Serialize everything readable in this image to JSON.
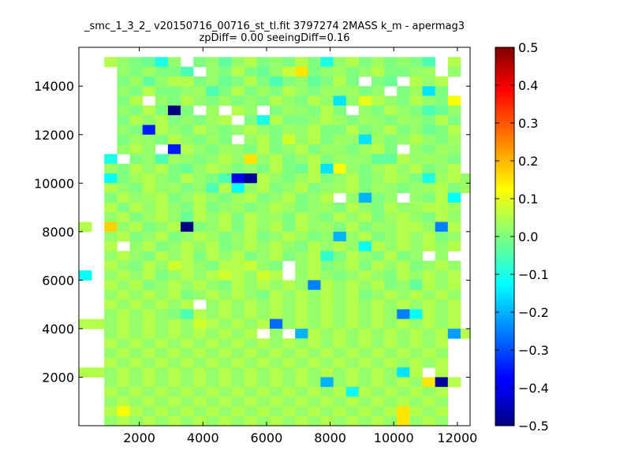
{
  "chart_data": {
    "type": "heatmap",
    "title_line1": "_smc_1_3_2_ v20150716_00716_st_tl.fit 3797274 2MASS k_m - apermag3",
    "title_line2": "zpDiff= 0.00 seeingDiff=0.16",
    "xlabel": "",
    "ylabel": "",
    "xlim": [
      100,
      12400
    ],
    "ylim": [
      0,
      15600
    ],
    "xticks": [
      2000,
      4000,
      6000,
      8000,
      10000,
      12000
    ],
    "yticks": [
      2000,
      4000,
      6000,
      8000,
      10000,
      12000,
      14000
    ],
    "colormap": "jet",
    "clim": [
      -0.5,
      0.5
    ],
    "colorbar_ticks": [
      0.5,
      0.4,
      0.3,
      0.2,
      0.1,
      0.0,
      -0.1,
      -0.2,
      -0.3,
      -0.4,
      -0.5
    ],
    "colorbar_tick_labels": [
      "0.5",
      "0.4",
      "0.3",
      "0.2",
      "0.1",
      "0.0",
      "−0.1",
      "−0.2",
      "−0.3",
      "−0.4",
      "−0.5"
    ],
    "grid": false,
    "bin_size": 400,
    "origin": [
      100,
      0
    ],
    "n_cols": 31,
    "n_rows": 39,
    "missing_value": -9,
    "rows_top_to_bottom": [
      [
        -9,
        -9,
        -9,
        -9,
        -9,
        -9,
        -9,
        -9,
        -9,
        -9,
        -9,
        -9,
        -9,
        -9,
        -9,
        -9,
        -9,
        -9,
        -9,
        -9,
        -9,
        -9,
        -9,
        -9,
        -9,
        -9,
        -9,
        -9,
        -9,
        -9,
        -9
      ],
      [
        -9,
        -9,
        0.05,
        0.02,
        0,
        -0.02,
        -0.1,
        0.02,
        -9,
        0,
        0.02,
        -0.03,
        0.02,
        0.05,
        0,
        0.02,
        0,
        0.05,
        0,
        -0.1,
        0.02,
        0.05,
        0,
        0.03,
        0,
        0.02,
        0,
        -0.05,
        -9,
        0.05,
        -9
      ],
      [
        -9,
        -9,
        -9,
        0.02,
        0,
        0.03,
        0,
        0,
        -0.05,
        -9,
        0.02,
        0,
        0.05,
        0,
        -0.02,
        0.02,
        0.07,
        0.15,
        0,
        0.02,
        0.03,
        0,
        0.02,
        0.05,
        0,
        0,
        0.02,
        0.03,
        -9,
        0.02,
        -9
      ],
      [
        -9,
        -9,
        -9,
        0,
        0.03,
        -0.03,
        0.02,
        0.05,
        0.05,
        0,
        0.02,
        -0.02,
        0,
        0.05,
        0,
        -0.05,
        0,
        0.02,
        -0.03,
        0,
        0.05,
        0,
        -9,
        0,
        -0.02,
        -9,
        0.05,
        0.02,
        0.05,
        -9,
        -9
      ],
      [
        -9,
        -9,
        -9,
        0.02,
        0,
        0.05,
        0,
        0,
        0.02,
        0.03,
        -0.05,
        0,
        0.05,
        0,
        0.03,
        0,
        0.05,
        0.02,
        0,
        0.03,
        0.02,
        0.03,
        0,
        0.02,
        -9,
        0,
        0.03,
        -0.15,
        0,
        -9,
        -9
      ],
      [
        -9,
        -9,
        -9,
        0,
        0.05,
        -9,
        0.02,
        0,
        0.05,
        0.02,
        0,
        0.03,
        0,
        0.02,
        0,
        0.05,
        0.02,
        0,
        0.05,
        0.02,
        -0.15,
        0.02,
        0.1,
        0.05,
        0.02,
        0,
        0.05,
        0.02,
        0,
        0.12,
        -9
      ],
      [
        -9,
        -9,
        -9,
        0.02,
        0,
        0.05,
        0,
        -0.5,
        0,
        -9,
        0.03,
        -9,
        0.05,
        0.02,
        -9,
        0,
        0.03,
        0.02,
        0,
        0.05,
        0,
        -9,
        0.02,
        0,
        0.05,
        0.02,
        0,
        -0.05,
        -0.02,
        0.02,
        -9
      ],
      [
        -9,
        -9,
        -9,
        0,
        0.05,
        0.02,
        0.05,
        0,
        0.02,
        0,
        0.03,
        0.05,
        -9,
        0,
        -0.1,
        0.05,
        0,
        0,
        0.02,
        0.05,
        0.03,
        0,
        0.03,
        0.02,
        0,
        0.03,
        0.02,
        0,
        0.05,
        0,
        -9
      ],
      [
        -9,
        -9,
        -9,
        0.02,
        0,
        -0.35,
        0.05,
        0.02,
        0,
        0.05,
        0.02,
        0,
        0.02,
        0.05,
        0.02,
        0,
        0.03,
        0.02,
        0.05,
        0,
        0,
        0.05,
        0,
        0.02,
        0.05,
        0,
        0.02,
        -0.02,
        0,
        0.05,
        -9
      ],
      [
        -9,
        -9,
        -9,
        0,
        0.03,
        0.02,
        0,
        0.05,
        0.02,
        0,
        0.03,
        0,
        -9,
        0.02,
        0.05,
        0,
        0.08,
        0.02,
        0.05,
        0,
        0.03,
        0.02,
        -0.15,
        0.03,
        0,
        0.02,
        0.05,
        0.02,
        0,
        0.03,
        -9
      ],
      [
        -9,
        -9,
        -9,
        0.02,
        0.05,
        0.02,
        -9,
        -0.35,
        0.05,
        0.02,
        0,
        0.03,
        0.02,
        0,
        0.05,
        0,
        0.02,
        0.05,
        0,
        0.03,
        0.02,
        0,
        0.03,
        0.05,
        0,
        -9,
        0.02,
        0,
        0.03,
        0.02,
        -9
      ],
      [
        -9,
        -9,
        -0.1,
        -9,
        0,
        0.02,
        -0.05,
        0.03,
        0.02,
        0,
        0.02,
        0.05,
        0.02,
        0.15,
        0.02,
        0.05,
        0,
        0.02,
        0.05,
        0,
        0.03,
        0.02,
        0.02,
        -0.03,
        -0.03,
        0.05,
        0.02,
        0.03,
        0.02,
        0,
        -9
      ],
      [
        -9,
        -9,
        0.03,
        0,
        0.05,
        0.02,
        0.05,
        0,
        -0.02,
        0.02,
        0.05,
        0.03,
        0,
        0.02,
        0,
        0.05,
        0,
        -0.02,
        0.05,
        -0.15,
        0.12,
        0.02,
        0,
        0.03,
        0.05,
        0.02,
        0.05,
        0,
        0.02,
        0.05,
        -9
      ],
      [
        -9,
        -9,
        -0.12,
        0,
        0.03,
        0.05,
        0.02,
        0,
        0.05,
        0.02,
        0,
        -0.05,
        -0.4,
        -0.47,
        0.05,
        0.02,
        0,
        0.03,
        0.05,
        0,
        0.02,
        0.05,
        0,
        0.02,
        0.05,
        0.03,
        0,
        -0.1,
        0.03,
        0.05,
        0.02
      ],
      [
        -9,
        -9,
        0.05,
        0.02,
        0,
        0.05,
        0.02,
        0.03,
        0,
        0.02,
        -0.05,
        0.05,
        -0.12,
        0.02,
        0.05,
        0,
        0.02,
        0.05,
        0,
        0.02,
        0.03,
        0.05,
        0,
        0.03,
        0.02,
        0,
        0.02,
        0.03,
        0.05,
        0,
        0.03
      ],
      [
        -9,
        -9,
        0,
        0.05,
        0.02,
        0.03,
        0.05,
        0,
        0.02,
        0.05,
        0.02,
        0,
        0.03,
        0.05,
        0,
        0.02,
        0.05,
        0,
        0.02,
        0.05,
        -9,
        0.02,
        -0.2,
        0,
        0.02,
        -9,
        0.02,
        0,
        0.05,
        -0.12,
        -9
      ],
      [
        -9,
        -9,
        0.05,
        0,
        0.05,
        0.02,
        0.05,
        0.02,
        0,
        0.05,
        0,
        0.02,
        0.03,
        0,
        0.02,
        0.05,
        0.03,
        0,
        0.02,
        0.03,
        0,
        0.05,
        0.02,
        0,
        0.05,
        0.02,
        0.03,
        0.05,
        0.05,
        0.03,
        -9
      ],
      [
        -9,
        -9,
        0.02,
        0.05,
        0,
        0.03,
        0.05,
        0.02,
        -0.02,
        0.05,
        0.02,
        0.05,
        0,
        0.05,
        0.02,
        0.03,
        0,
        0.05,
        0.02,
        0,
        0.05,
        0.02,
        0.05,
        0,
        0.03,
        0.05,
        0.02,
        0,
        0.05,
        0.02,
        -9
      ],
      [
        0.05,
        -9,
        0.17,
        0.02,
        0.05,
        0,
        0.02,
        0.05,
        -0.5,
        0,
        0.02,
        0.05,
        0,
        0.05,
        0.02,
        0.05,
        0,
        0.05,
        0.02,
        0.03,
        0,
        0.05,
        0,
        0.03,
        0.02,
        0.05,
        0.05,
        0.02,
        -0.25,
        0.05,
        -9
      ],
      [
        -9,
        -9,
        0.02,
        0.05,
        0,
        0.02,
        0.05,
        0,
        0.02,
        0.05,
        0.03,
        0,
        0.02,
        0.05,
        0,
        0.02,
        0.05,
        0.03,
        0,
        0.02,
        -0.2,
        0.02,
        0.05,
        0,
        0.02,
        0.05,
        0.02,
        0.05,
        0,
        0.02,
        -9
      ],
      [
        -9,
        -9,
        0.05,
        -9,
        0.02,
        0.05,
        0,
        0.02,
        0.05,
        0.02,
        0.05,
        0,
        0.02,
        0.05,
        0.02,
        0.05,
        0.02,
        0,
        0.05,
        0.02,
        0.05,
        0.02,
        -0.12,
        0.05,
        0.02,
        0.05,
        0.02,
        0.05,
        0.02,
        0.05,
        -9
      ],
      [
        -9,
        -9,
        0.02,
        0.05,
        0.02,
        0,
        0.05,
        0.02,
        0.05,
        0,
        0.05,
        0.02,
        0.05,
        0,
        0.02,
        0.05,
        0,
        0.02,
        0.05,
        -0.08,
        0,
        0.05,
        0.02,
        0,
        0.05,
        0,
        0.02,
        -9,
        0.02,
        -9,
        -9
      ],
      [
        -9,
        -9,
        0.05,
        0.02,
        0,
        0.05,
        0.02,
        0.08,
        0.05,
        0.02,
        0,
        0.05,
        0.05,
        0.07,
        0.02,
        0,
        -9,
        0.02,
        0.05,
        0,
        0.02,
        0.05,
        0,
        0.05,
        0.02,
        0.05,
        0,
        0.02,
        0.05,
        0.02,
        -9
      ],
      [
        -0.12,
        -9,
        0.02,
        0.05,
        0.02,
        0.05,
        0,
        0.02,
        0.05,
        0.02,
        0.05,
        0.08,
        0.05,
        0.02,
        0.08,
        0.05,
        -9,
        0.02,
        0.05,
        0.02,
        0,
        0.02,
        0.05,
        0.02,
        0,
        0.05,
        0.02,
        0.05,
        0.02,
        0.05,
        -9
      ],
      [
        -9,
        -9,
        0.05,
        0.02,
        0.05,
        0,
        0.02,
        0.05,
        0.02,
        0.05,
        0.02,
        0,
        0.05,
        0.02,
        0.05,
        0.02,
        0.05,
        0.02,
        -0.25,
        0.05,
        0.02,
        0.05,
        0.02,
        0.05,
        0,
        0.02,
        -0.03,
        0.05,
        0.02,
        0.05,
        -9
      ],
      [
        -9,
        -9,
        0.02,
        0.05,
        0.02,
        0.05,
        0.02,
        0.05,
        0,
        0.02,
        0.05,
        0.02,
        0.05,
        0.02,
        0,
        0.05,
        0.02,
        0.05,
        0.02,
        0.05,
        0.02,
        0.05,
        0,
        0.02,
        0.05,
        0.02,
        0.05,
        0.02,
        0.05,
        0.02,
        -9
      ],
      [
        -9,
        -9,
        0.05,
        0.02,
        0.05,
        0.02,
        0.05,
        0.02,
        0.05,
        -9,
        0.02,
        0.05,
        0.02,
        0.05,
        0.02,
        0.05,
        0.02,
        0.05,
        0.02,
        0.05,
        0.02,
        0.05,
        0.02,
        0.05,
        0.02,
        0.05,
        0.02,
        0.05,
        0.02,
        0.05,
        -9
      ],
      [
        -9,
        -9,
        0.02,
        0.05,
        0.02,
        0.05,
        0.02,
        0,
        -0.05,
        0.05,
        0.02,
        0.05,
        0.02,
        0.05,
        0.02,
        0.05,
        0.02,
        0.05,
        0.02,
        0.05,
        0.02,
        0.05,
        0.02,
        0.05,
        0.02,
        -0.25,
        -0.12,
        0.05,
        0.02,
        0.05,
        -9
      ],
      [
        0.05,
        0.05,
        0.02,
        0.05,
        0.02,
        0.05,
        0.02,
        0.05,
        0.02,
        0.08,
        0.05,
        0.02,
        0.05,
        0.02,
        0.05,
        -0.27,
        0.02,
        0.05,
        0.02,
        0.05,
        0.02,
        0.05,
        0.02,
        0.05,
        0.02,
        0.05,
        0.02,
        0.05,
        0.02,
        0.05,
        -9
      ],
      [
        -9,
        -9,
        0.02,
        0.05,
        0.02,
        0.05,
        0.02,
        0.05,
        0.02,
        0.05,
        0.02,
        0.05,
        0.02,
        0.05,
        -9,
        0.02,
        -9,
        -0.2,
        0.05,
        0.02,
        0.05,
        0.02,
        0.05,
        0.02,
        0.05,
        0.02,
        0.05,
        0.02,
        0.05,
        -0.22,
        0.05
      ],
      [
        -9,
        -9,
        0.05,
        0.02,
        0.05,
        0.02,
        0.05,
        0.02,
        0.05,
        0.02,
        0.05,
        0.02,
        0.05,
        0.02,
        0.05,
        0.02,
        0.05,
        0.02,
        0.05,
        0.02,
        0.05,
        0.02,
        0.05,
        0.02,
        0.05,
        0.02,
        0.05,
        0.02,
        0.05,
        -9,
        -9
      ],
      [
        -9,
        -9,
        0.02,
        0.05,
        0.02,
        0.05,
        0.02,
        0.05,
        0.02,
        0.05,
        0.02,
        0.05,
        0.02,
        0.05,
        0.02,
        0.05,
        0.02,
        0.05,
        0.02,
        0.05,
        0.02,
        0.05,
        0.02,
        0.05,
        0.02,
        0.05,
        0.02,
        0.05,
        0.02,
        -9,
        -9
      ],
      [
        -9,
        -9,
        0.05,
        0.02,
        0.05,
        0.02,
        0.05,
        0.02,
        0.05,
        0.02,
        0.05,
        0.02,
        0.05,
        0.02,
        0.05,
        0.02,
        0.05,
        0.02,
        0.05,
        0.02,
        0.05,
        0.02,
        0.05,
        0.02,
        0.05,
        0.02,
        0.05,
        0.02,
        0.05,
        -9,
        -9
      ],
      [
        0.05,
        0.05,
        0.02,
        0.05,
        0.02,
        0.05,
        0.02,
        0.05,
        0.02,
        0.05,
        0.02,
        0.05,
        0.02,
        0.05,
        0.02,
        0.05,
        0.02,
        0.05,
        0.02,
        0.05,
        0.02,
        0.05,
        0.02,
        0.05,
        0.02,
        -0.15,
        0.05,
        -9,
        0.05,
        -9,
        -9
      ],
      [
        -9,
        -9,
        0.02,
        0.05,
        0.02,
        0.05,
        0.02,
        0.05,
        0.02,
        0.05,
        0.02,
        0.05,
        0.02,
        0.05,
        0.02,
        0.05,
        0.02,
        0.05,
        0.02,
        -0.2,
        0.02,
        0.05,
        0.02,
        0.05,
        0.02,
        0.05,
        0.02,
        0.15,
        -0.47,
        0.05,
        -9
      ],
      [
        -9,
        -9,
        0.05,
        0.02,
        0.05,
        0.02,
        0.05,
        0.02,
        0.05,
        0.02,
        0.05,
        0.02,
        0.05,
        0.02,
        0.05,
        0.02,
        0.05,
        0.02,
        0.05,
        0.02,
        0.05,
        -0.12,
        0.05,
        0.02,
        0.05,
        0.02,
        0.05,
        0.02,
        0.05,
        -9,
        -9
      ],
      [
        -9,
        -9,
        0.02,
        0.05,
        0.02,
        0.05,
        0.02,
        0.05,
        0.02,
        0.05,
        0.02,
        0.05,
        0.02,
        0.05,
        0.02,
        0.05,
        0.02,
        0.05,
        0.02,
        0.05,
        0.02,
        0.05,
        0.02,
        0.05,
        0.02,
        0.05,
        0.02,
        0.05,
        0.02,
        -9,
        -9
      ],
      [
        -9,
        -9,
        0.05,
        0.12,
        0.05,
        0.02,
        0.05,
        0.02,
        0.05,
        0.02,
        0.05,
        0.02,
        0.05,
        0.02,
        0.05,
        0.02,
        0.05,
        0.02,
        0.05,
        0.02,
        0.05,
        0.02,
        0.05,
        0.02,
        0.05,
        0.15,
        0.05,
        0.02,
        0.05,
        -9,
        -9
      ],
      [
        -9,
        -9,
        0.02,
        0.05,
        0.02,
        0.05,
        0.02,
        0.05,
        0.02,
        0.05,
        0.02,
        0.05,
        0.02,
        0.05,
        0.02,
        0.05,
        0.02,
        0.05,
        0.02,
        0.05,
        0.02,
        0.05,
        0.02,
        0.05,
        0.02,
        0.15,
        0.02,
        0.05,
        0.02,
        -9,
        -9
      ]
    ]
  }
}
